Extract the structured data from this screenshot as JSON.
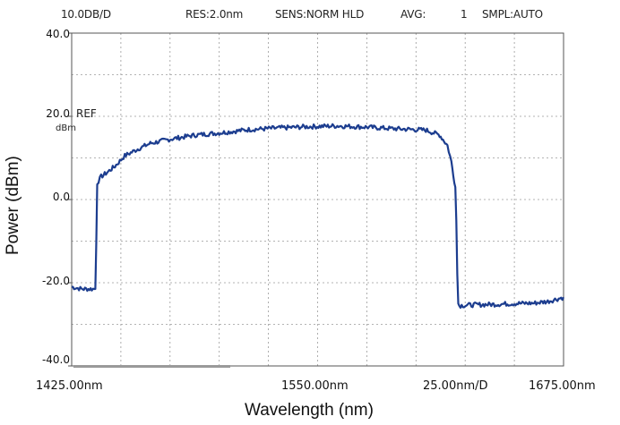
{
  "header": {
    "scale": "10.0DB/D",
    "resolution": "RES:2.0nm",
    "sensitivity": "SENS:NORM HLD",
    "avg_label": "AVG:",
    "avg_value": "1",
    "sampling": "SMPL:AUTO"
  },
  "reference": {
    "label": "REF",
    "unit": "dBm"
  },
  "colors": {
    "trace": "#1c3d8f",
    "grid": "#9a9a9a",
    "frame": "#555555"
  },
  "chart_data": {
    "type": "line",
    "xlabel": "Wavelength (nm)",
    "ylabel": "Power (dBm)",
    "xlim": [
      1425,
      1675
    ],
    "ylim": [
      -40,
      40
    ],
    "grid": true,
    "x_tick_labels": {
      "left": "1425.00nm",
      "center": "1550.00nm",
      "span": "25.00nm/D",
      "right": "1675.00nm"
    },
    "y_tick_labels": [
      "40.0",
      "20.0",
      "0.0",
      "-20.0",
      "-40.0"
    ],
    "y_tick_values": [
      40,
      20,
      0,
      -20,
      -40
    ],
    "series": [
      {
        "x": [
          1425,
          1430,
          1437,
          1437.5,
          1438,
          1440,
          1443,
          1447,
          1452,
          1458,
          1465,
          1475,
          1488,
          1500,
          1515,
          1530,
          1545,
          1560,
          1575,
          1590,
          1605,
          1612,
          1616,
          1618,
          1619,
          1620,
          1620.5,
          1621,
          1621.5,
          1622,
          1630,
          1640,
          1650,
          1660,
          1667,
          1675
        ],
        "y": [
          -21.0,
          -21.5,
          -21.5,
          -10,
          4.0,
          5.5,
          6.5,
          8.0,
          10.5,
          12.0,
          13.5,
          14.5,
          15.5,
          16.0,
          16.8,
          17.2,
          17.5,
          17.7,
          17.4,
          17.0,
          16.7,
          15.5,
          13.0,
          9.0,
          6.0,
          3.0,
          -5.0,
          -18.0,
          -25.0,
          -25.5,
          -25.3,
          -25.2,
          -25.0,
          -24.9,
          -24.5,
          -23.5
        ]
      }
    ]
  }
}
